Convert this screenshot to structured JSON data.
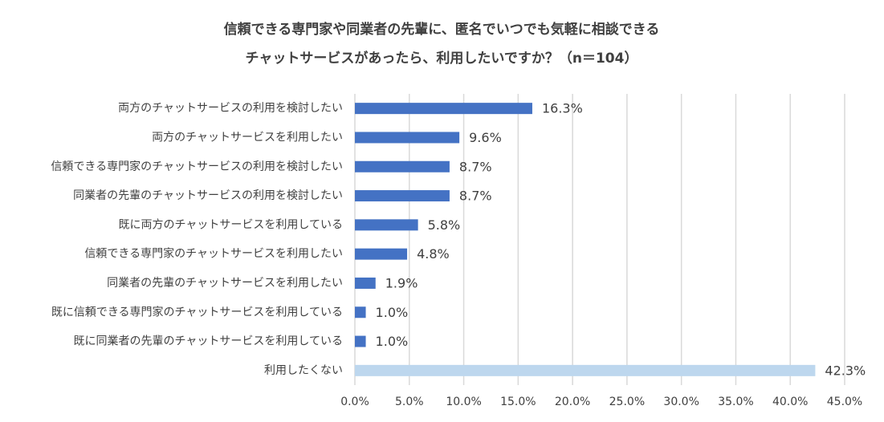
{
  "chart_data": {
    "type": "bar",
    "orientation": "horizontal",
    "title": [
      "信頼できる専門家や同業者の先輩に、匿名でいつでも気軽に相談できる",
      "チャットサービスがあったら、利用したいですか？（n＝104）"
    ],
    "categories": [
      "両方のチャットサービスの利用を検討したい",
      "両方のチャットサービスを利用したい",
      "信頼できる専門家のチャットサービスの利用を検討したい",
      "同業者の先輩のチャットサービスの利用を検討したい",
      "既に両方のチャットサービスを利用している",
      "信頼できる専門家のチャットサービスを利用したい",
      "同業者の先輩のチャットサービスを利用したい",
      "既に信頼できる専門家のチャットサービスを利用している",
      "既に同業者の先輩のチャットサービスを利用している",
      "利用したくない"
    ],
    "values": [
      16.3,
      9.6,
      8.7,
      8.7,
      5.8,
      4.8,
      1.9,
      1.0,
      1.0,
      42.3
    ],
    "value_labels": [
      "16.3%",
      "9.6%",
      "8.7%",
      "8.7%",
      "5.8%",
      "4.8%",
      "1.9%",
      "1.0%",
      "1.0%",
      "42.3%"
    ],
    "colors": [
      "#4472c4",
      "#4472c4",
      "#4472c4",
      "#4472c4",
      "#4472c4",
      "#4472c4",
      "#4472c4",
      "#4472c4",
      "#4472c4",
      "#bdd7ee"
    ],
    "xlim": [
      0,
      45
    ],
    "xticks": [
      {
        "value": 0,
        "label": "0.0%"
      },
      {
        "value": 5,
        "label": "5.0%"
      },
      {
        "value": 10,
        "label": "10.0%"
      },
      {
        "value": 15,
        "label": "15.0%"
      },
      {
        "value": 20,
        "label": "20.0%"
      },
      {
        "value": 25,
        "label": "25.0%"
      },
      {
        "value": 30,
        "label": "30.0%"
      },
      {
        "value": 35,
        "label": "35.0%"
      },
      {
        "value": 40,
        "label": "40.0%"
      },
      {
        "value": 45,
        "label": "45.0%"
      }
    ],
    "grid": true
  }
}
